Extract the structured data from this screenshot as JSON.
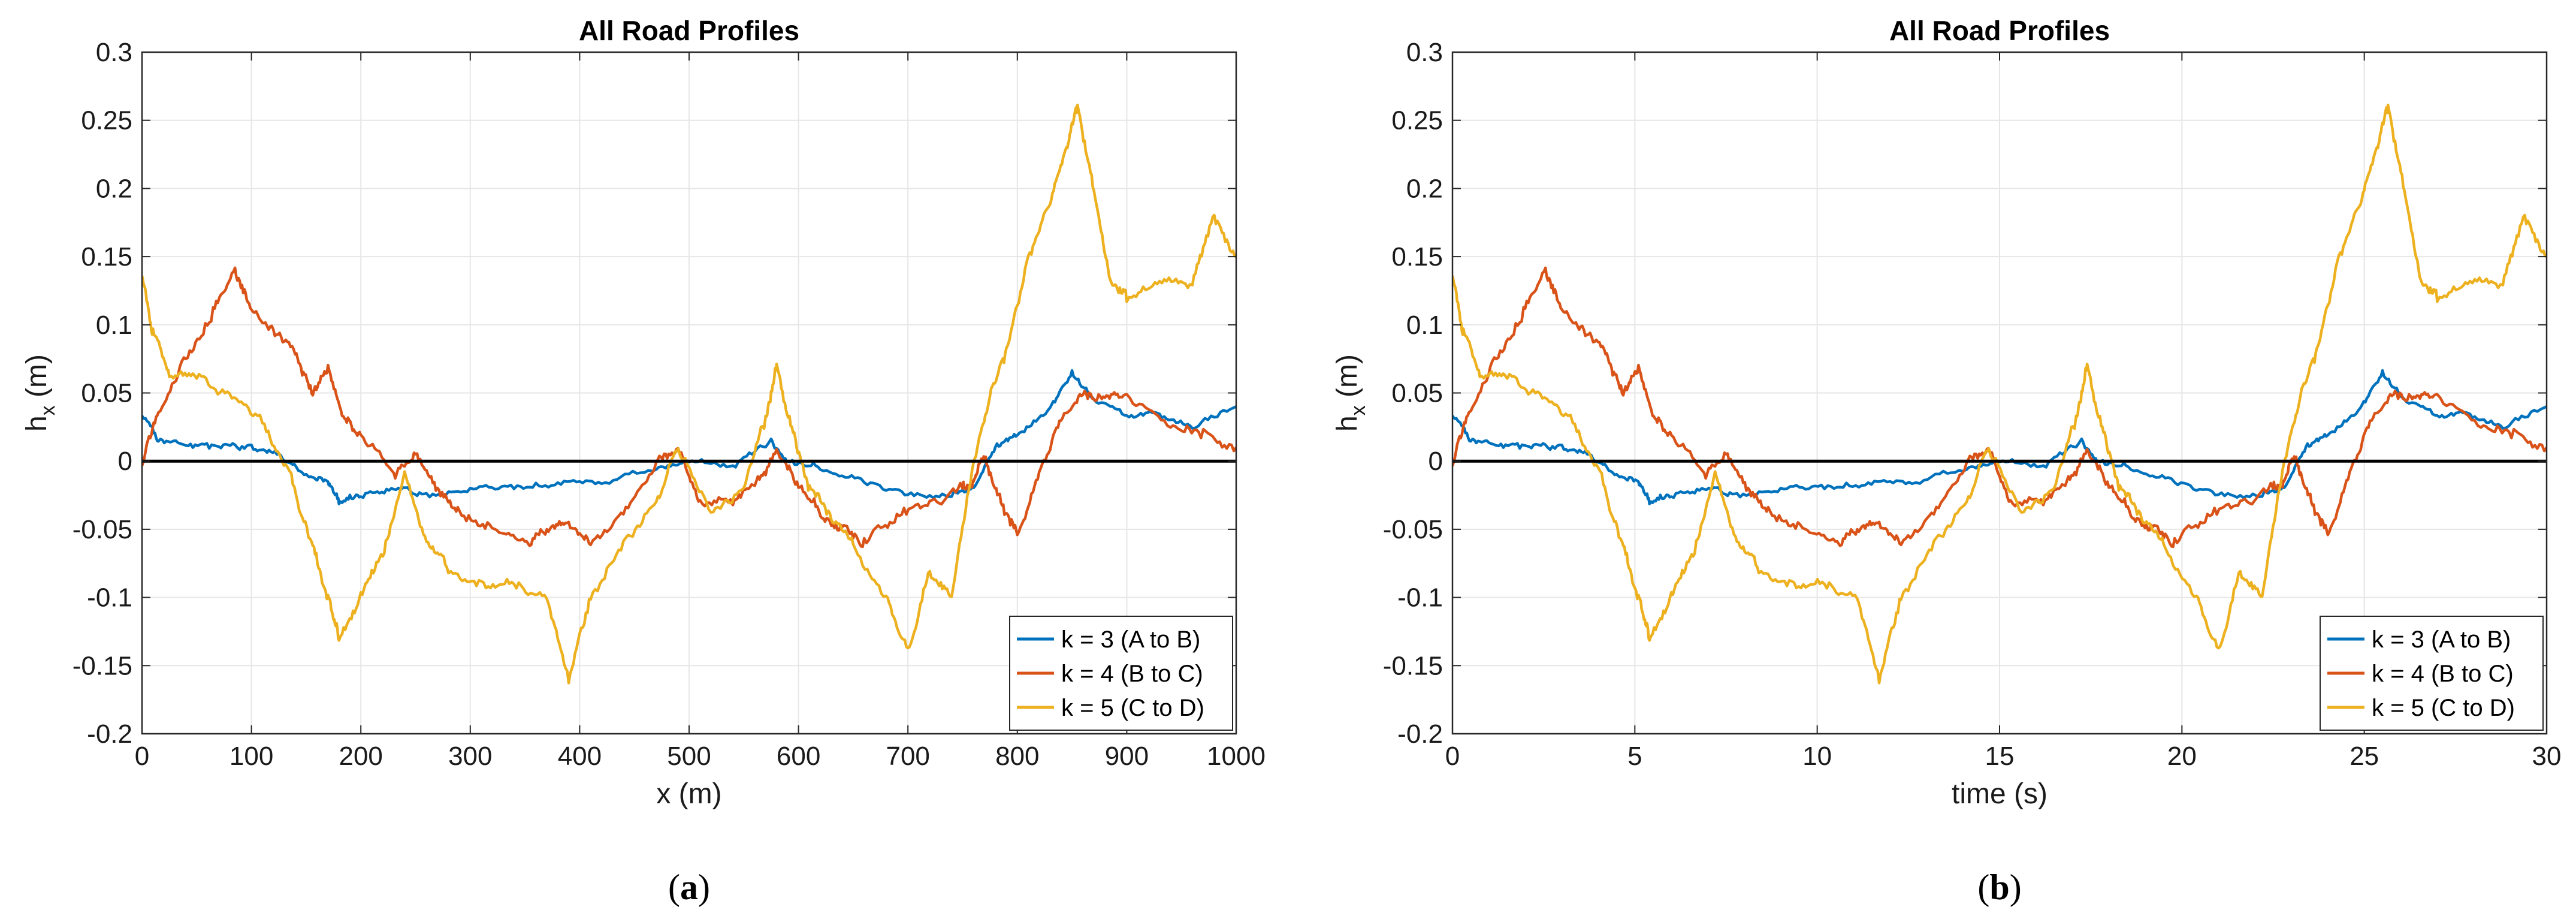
{
  "colors": {
    "k3": "#0072BD",
    "k4": "#D95319",
    "k5": "#EDB120",
    "zero_line": "#000000",
    "grid": "#e6e6e6"
  },
  "chart_data": [
    {
      "type": "line",
      "id": "a",
      "title": "All Road Profiles",
      "xlabel": "x (m)",
      "ylabel": "h",
      "ylabel_sub": "x",
      "ylabel_unit": " (m)",
      "xlim": [
        0,
        1000
      ],
      "ylim": [
        -0.2,
        0.3
      ],
      "xticks": [
        0,
        100,
        200,
        300,
        400,
        500,
        600,
        700,
        800,
        900,
        1000
      ],
      "yticks": [
        -0.2,
        -0.15,
        -0.1,
        -0.05,
        0,
        0.05,
        0.1,
        0.15,
        0.2,
        0.25,
        0.3
      ],
      "ytick_labels": [
        "-0.2",
        "-0.15",
        "-0.1",
        "-0.05",
        "0",
        "0.05",
        "0.1",
        "0.15",
        "0.2",
        "0.25",
        "0.3"
      ],
      "grid": true,
      "legend_position": "bottom-right",
      "caption": "a",
      "series": [
        {
          "name": "k = 3 (A to B)",
          "color_key": "k3",
          "x": [
            0,
            15,
            40,
            70,
            100,
            125,
            150,
            170,
            180,
            200,
            230,
            260,
            300,
            340,
            380,
            420,
            470,
            500,
            540,
            575,
            590,
            620,
            660,
            700,
            740,
            760,
            780,
            800,
            830,
            850,
            870,
            900,
            930,
            960,
            1000
          ],
          "y": [
            0.035,
            0.015,
            0.012,
            0.01,
            0.012,
            0.005,
            -0.01,
            -0.015,
            -0.03,
            -0.025,
            -0.02,
            -0.025,
            -0.02,
            -0.02,
            -0.015,
            -0.015,
            -0.005,
            0,
            -0.005,
            0.015,
            0,
            -0.005,
            -0.015,
            -0.025,
            -0.025,
            -0.02,
            0.01,
            0.02,
            0.04,
            0.065,
            0.045,
            0.035,
            0.035,
            0.025,
            0.04
          ]
        },
        {
          "name": "k = 4 (B to C)",
          "color_key": "k4",
          "x": [
            0,
            15,
            40,
            65,
            85,
            100,
            120,
            140,
            155,
            170,
            185,
            200,
            230,
            250,
            270,
            290,
            320,
            350,
            370,
            390,
            410,
            440,
            470,
            490,
            510,
            540,
            560,
            580,
            600,
            620,
            640,
            660,
            690,
            720,
            750,
            760,
            770,
            785,
            800,
            820,
            840,
            860,
            880,
            900,
            940,
            970,
            1000
          ],
          "y": [
            0,
            0.035,
            0.075,
            0.11,
            0.14,
            0.11,
            0.095,
            0.08,
            0.05,
            0.07,
            0.03,
            0.02,
            -0.01,
            0.005,
            -0.02,
            -0.04,
            -0.05,
            -0.06,
            -0.05,
            -0.045,
            -0.06,
            -0.04,
            0,
            0.01,
            -0.03,
            -0.03,
            -0.015,
            0.005,
            -0.02,
            -0.04,
            -0.05,
            -0.06,
            -0.04,
            -0.03,
            -0.02,
            -0.015,
            0.005,
            -0.03,
            -0.055,
            -0.01,
            0.03,
            0.05,
            0.045,
            0.05,
            0.025,
            0.02,
            0.01
          ]
        },
        {
          "name": "k = 5 (C to D)",
          "color_key": "k5",
          "x": [
            0,
            10,
            25,
            50,
            80,
            110,
            135,
            155,
            170,
            180,
            200,
            220,
            240,
            260,
            280,
            310,
            340,
            370,
            390,
            410,
            440,
            470,
            490,
            520,
            550,
            570,
            580,
            595,
            610,
            630,
            650,
            680,
            700,
            720,
            740,
            760,
            775,
            790,
            810,
            830,
            845,
            855,
            870,
            885,
            900,
            930,
            960,
            980,
            1000
          ],
          "y": [
            0.14,
            0.095,
            0.065,
            0.06,
            0.05,
            0.03,
            -0.01,
            -0.06,
            -0.1,
            -0.13,
            -0.1,
            -0.07,
            -0.01,
            -0.06,
            -0.08,
            -0.09,
            -0.09,
            -0.1,
            -0.16,
            -0.1,
            -0.06,
            -0.03,
            0.01,
            -0.04,
            -0.02,
            0.03,
            0.07,
            0.02,
            -0.02,
            -0.04,
            -0.06,
            -0.1,
            -0.14,
            -0.08,
            -0.1,
            0,
            0.05,
            0.08,
            0.15,
            0.19,
            0.23,
            0.26,
            0.2,
            0.13,
            0.12,
            0.13,
            0.13,
            0.18,
            0.15
          ]
        }
      ],
      "legend": [
        "k = 3 (A to B)",
        "k = 4 (B to C)",
        "k = 5 (C to D)"
      ]
    },
    {
      "type": "line",
      "id": "b",
      "title": "All Road Profiles",
      "xlabel": "time (s)",
      "ylabel": "h",
      "ylabel_sub": "x",
      "ylabel_unit": " (m)",
      "xlim": [
        0,
        30
      ],
      "ylim": [
        -0.2,
        0.3
      ],
      "xticks": [
        0,
        5,
        10,
        15,
        20,
        25,
        30
      ],
      "yticks": [
        -0.2,
        -0.15,
        -0.1,
        -0.05,
        0,
        0.05,
        0.1,
        0.15,
        0.2,
        0.25,
        0.3
      ],
      "ytick_labels": [
        "-0.2",
        "-0.15",
        "-0.1",
        "-0.05",
        "0",
        "0.05",
        "0.1",
        "0.15",
        "0.2",
        "0.25",
        "0.3"
      ],
      "grid": true,
      "legend_position": "bottom-right",
      "caption": "b",
      "series": [
        {
          "name": "k = 3 (A to B)",
          "color_key": "k3",
          "x": [
            0,
            0.5,
            1.2,
            2.1,
            3,
            3.75,
            4.5,
            5.1,
            5.4,
            6,
            6.9,
            7.8,
            9,
            10.2,
            11.4,
            12.6,
            14.1,
            15,
            16.2,
            17.25,
            17.7,
            18.6,
            19.8,
            21,
            22.2,
            22.8,
            23.4,
            24,
            24.9,
            25.5,
            26.1,
            27,
            27.9,
            28.8,
            30
          ],
          "y": [
            0.035,
            0.015,
            0.012,
            0.01,
            0.012,
            0.005,
            -0.01,
            -0.015,
            -0.03,
            -0.025,
            -0.02,
            -0.025,
            -0.02,
            -0.02,
            -0.015,
            -0.015,
            -0.005,
            0,
            -0.005,
            0.015,
            0,
            -0.005,
            -0.015,
            -0.025,
            -0.025,
            -0.02,
            0.01,
            0.02,
            0.04,
            0.065,
            0.045,
            0.035,
            0.035,
            0.025,
            0.04
          ]
        },
        {
          "name": "k = 4 (B to C)",
          "color_key": "k4",
          "x": [
            0,
            0.45,
            1.2,
            1.95,
            2.55,
            3,
            3.6,
            4.2,
            4.65,
            5.1,
            5.55,
            6,
            6.9,
            7.5,
            8.1,
            8.7,
            9.6,
            10.5,
            11.1,
            11.7,
            12.3,
            13.2,
            14.1,
            14.7,
            15.3,
            16.2,
            16.8,
            17.4,
            18,
            18.6,
            19.2,
            19.8,
            20.7,
            21.6,
            22.5,
            22.8,
            23.1,
            23.55,
            24,
            24.6,
            25.2,
            25.8,
            26.4,
            27,
            28.2,
            29.1,
            30
          ],
          "y": [
            0,
            0.035,
            0.075,
            0.11,
            0.14,
            0.11,
            0.095,
            0.08,
            0.05,
            0.07,
            0.03,
            0.02,
            -0.01,
            0.005,
            -0.02,
            -0.04,
            -0.05,
            -0.06,
            -0.05,
            -0.045,
            -0.06,
            -0.04,
            0,
            0.01,
            -0.03,
            -0.03,
            -0.015,
            0.005,
            -0.02,
            -0.04,
            -0.05,
            -0.06,
            -0.04,
            -0.03,
            -0.02,
            -0.015,
            0.005,
            -0.03,
            -0.055,
            -0.01,
            0.03,
            0.05,
            0.045,
            0.05,
            0.025,
            0.02,
            0.01
          ]
        },
        {
          "name": "k = 5 (C to D)",
          "color_key": "k5",
          "x": [
            0,
            0.3,
            0.75,
            1.5,
            2.4,
            3.3,
            4.05,
            4.65,
            5.1,
            5.4,
            6,
            6.6,
            7.2,
            7.8,
            8.4,
            9.3,
            10.2,
            11.1,
            11.7,
            12.3,
            13.2,
            14.1,
            14.7,
            15.6,
            16.5,
            17.1,
            17.4,
            17.85,
            18.3,
            18.9,
            19.5,
            20.4,
            21,
            21.6,
            22.2,
            22.8,
            23.25,
            23.7,
            24.3,
            24.9,
            25.35,
            25.65,
            26.1,
            26.55,
            27,
            27.9,
            28.8,
            29.4,
            30
          ],
          "y": [
            0.14,
            0.095,
            0.065,
            0.06,
            0.05,
            0.03,
            -0.01,
            -0.06,
            -0.1,
            -0.13,
            -0.1,
            -0.07,
            -0.01,
            -0.06,
            -0.08,
            -0.09,
            -0.09,
            -0.1,
            -0.16,
            -0.1,
            -0.06,
            -0.03,
            0.01,
            -0.04,
            -0.02,
            0.03,
            0.07,
            0.02,
            -0.02,
            -0.04,
            -0.06,
            -0.1,
            -0.14,
            -0.08,
            -0.1,
            0,
            0.05,
            0.08,
            0.15,
            0.19,
            0.23,
            0.26,
            0.2,
            0.13,
            0.12,
            0.13,
            0.13,
            0.18,
            0.15
          ]
        }
      ],
      "legend": [
        "k = 3 (A to B)",
        "k = 4 (B to C)",
        "k = 5 (C to D)"
      ]
    }
  ]
}
